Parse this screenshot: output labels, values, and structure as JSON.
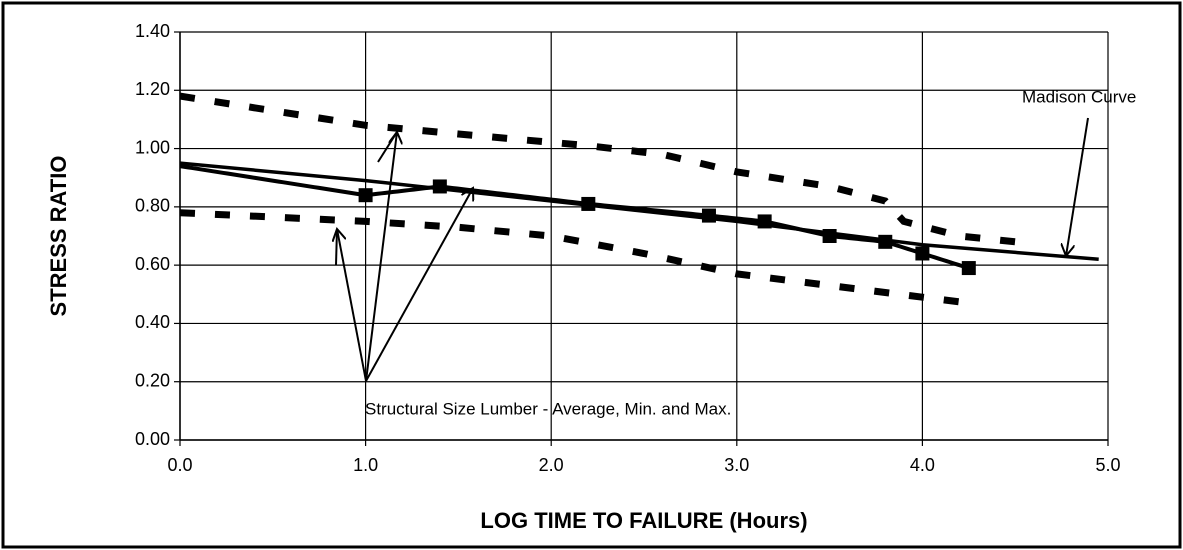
{
  "chart_data": {
    "type": "line",
    "xlabel": "LOG TIME TO FAILURE (Hours)",
    "ylabel": "STRESS RATIO",
    "annotations": [
      "Madison Curve",
      "Structural Size Lumber - Average, Min. and Max."
    ],
    "xlim": [
      0,
      5
    ],
    "xticks": [
      {
        "value": 0,
        "label": "0.0"
      },
      {
        "value": 1,
        "label": "1.0"
      },
      {
        "value": 2,
        "label": "2.0"
      },
      {
        "value": 3,
        "label": "3.0"
      },
      {
        "value": 4,
        "label": "4.0"
      },
      {
        "value": 5,
        "label": "5.0"
      }
    ],
    "ylim": [
      0,
      1.4
    ],
    "yticks": [
      {
        "value": 0,
        "label": "0.00"
      },
      {
        "value": 0.2,
        "label": "0.20"
      },
      {
        "value": 0.4,
        "label": "0.40"
      },
      {
        "value": 0.6,
        "label": "0.60"
      },
      {
        "value": 0.8,
        "label": "0.80"
      },
      {
        "value": 1.0,
        "label": "1.00"
      },
      {
        "value": 1.2,
        "label": "1.20"
      },
      {
        "value": 1.4,
        "label": "1.40"
      }
    ],
    "grid": true,
    "series": [
      {
        "color": "#000000",
        "line_style": "solid",
        "x": [
          0,
          1,
          2,
          3,
          4,
          4.95
        ],
        "values": [
          0.95,
          0.89,
          0.82,
          0.75,
          0.67,
          0.62
        ]
      },
      {
        "color": "#000000",
        "line_style": "heavy-dashed",
        "x": [
          0,
          1,
          1.4,
          2.2,
          2.85,
          3.15,
          3.5,
          3.8,
          4.0,
          4.25
        ],
        "values": [
          0.94,
          0.84,
          0.87,
          0.81,
          0.77,
          0.75,
          0.7,
          0.68,
          0.64,
          0.59
        ]
      },
      {
        "color": "#000000",
        "line_style": "dashed",
        "x": [
          0,
          1,
          1.5,
          2.2,
          2.6,
          3.0,
          3.5,
          3.8,
          3.9,
          4.2,
          4.5
        ],
        "values": [
          1.18,
          1.08,
          1.05,
          1.01,
          0.98,
          0.92,
          0.87,
          0.82,
          0.75,
          0.7,
          0.68
        ]
      },
      {
        "color": "#000000",
        "line_style": "dashed",
        "x": [
          0,
          1,
          1.5,
          2.0,
          2.5,
          3.0,
          3.5,
          4.0,
          4.25
        ],
        "values": [
          0.78,
          0.75,
          0.73,
          0.7,
          0.64,
          0.57,
          0.53,
          0.49,
          0.47
        ]
      }
    ]
  }
}
